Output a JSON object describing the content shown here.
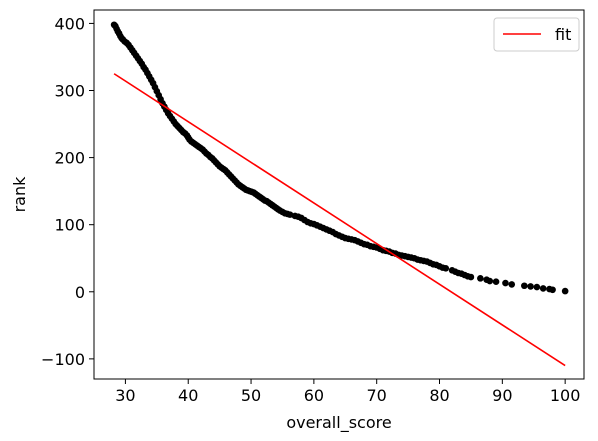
{
  "chart_data": {
    "type": "scatter",
    "xlabel": "overall_score",
    "ylabel": "rank",
    "xlim": [
      25,
      103
    ],
    "ylim": [
      -130,
      420
    ],
    "xticks": [
      30,
      40,
      50,
      60,
      70,
      80,
      90,
      100
    ],
    "yticks": [
      -100,
      0,
      100,
      200,
      300,
      400
    ],
    "xtick_labels": [
      "30",
      "40",
      "50",
      "60",
      "70",
      "80",
      "90",
      "100"
    ],
    "ytick_labels": [
      "−100",
      "0",
      "100",
      "200",
      "300",
      "400"
    ],
    "grid": false,
    "legend": {
      "position": "top-right",
      "entries": [
        {
          "label": "fit",
          "color": "#ff0000"
        }
      ]
    },
    "series": [
      {
        "kind": "points",
        "color": "#000000",
        "points": [
          [
            28.2,
            398
          ],
          [
            28.4,
            396
          ],
          [
            28.6,
            392
          ],
          [
            28.8,
            388
          ],
          [
            29.0,
            385
          ],
          [
            29.2,
            381
          ],
          [
            29.4,
            378
          ],
          [
            29.6,
            376
          ],
          [
            29.9,
            373
          ],
          [
            30.2,
            371
          ],
          [
            30.5,
            368
          ],
          [
            30.8,
            364
          ],
          [
            31.1,
            360
          ],
          [
            31.4,
            356
          ],
          [
            31.7,
            352
          ],
          [
            32.0,
            348
          ],
          [
            32.3,
            344
          ],
          [
            32.6,
            340
          ],
          [
            32.9,
            335
          ],
          [
            33.2,
            331
          ],
          [
            33.5,
            326
          ],
          [
            33.8,
            321
          ],
          [
            34.1,
            316
          ],
          [
            34.4,
            311
          ],
          [
            34.7,
            305
          ],
          [
            35.0,
            299
          ],
          [
            35.3,
            293
          ],
          [
            35.6,
            287
          ],
          [
            35.9,
            281
          ],
          [
            36.2,
            276
          ],
          [
            36.5,
            271
          ],
          [
            36.8,
            266
          ],
          [
            37.1,
            262
          ],
          [
            37.4,
            258
          ],
          [
            37.7,
            254
          ],
          [
            38.0,
            250
          ],
          [
            38.3,
            247
          ],
          [
            38.6,
            244
          ],
          [
            38.9,
            241
          ],
          [
            39.2,
            238
          ],
          [
            39.5,
            236
          ],
          [
            39.8,
            233
          ],
          [
            40.0,
            230
          ],
          [
            40.2,
            227
          ],
          [
            40.5,
            224
          ],
          [
            40.8,
            222
          ],
          [
            41.1,
            220
          ],
          [
            41.4,
            218
          ],
          [
            41.7,
            216
          ],
          [
            42.0,
            214
          ],
          [
            42.3,
            212
          ],
          [
            42.6,
            209
          ],
          [
            42.9,
            206
          ],
          [
            43.2,
            204
          ],
          [
            43.5,
            201
          ],
          [
            43.8,
            199
          ],
          [
            44.1,
            196
          ],
          [
            44.4,
            193
          ],
          [
            44.7,
            190
          ],
          [
            45.0,
            187
          ],
          [
            45.3,
            185
          ],
          [
            45.6,
            183
          ],
          [
            45.9,
            181
          ],
          [
            46.2,
            178
          ],
          [
            46.5,
            175
          ],
          [
            46.8,
            172
          ],
          [
            47.1,
            169
          ],
          [
            47.4,
            166
          ],
          [
            47.7,
            163
          ],
          [
            48.0,
            160
          ],
          [
            48.3,
            158
          ],
          [
            48.6,
            156
          ],
          [
            48.9,
            154
          ],
          [
            49.2,
            152
          ],
          [
            49.5,
            151
          ],
          [
            49.8,
            150
          ],
          [
            50.1,
            149
          ],
          [
            50.4,
            148
          ],
          [
            50.7,
            146
          ],
          [
            51.0,
            144
          ],
          [
            51.3,
            142
          ],
          [
            51.6,
            140
          ],
          [
            51.9,
            138
          ],
          [
            52.2,
            136
          ],
          [
            52.5,
            135
          ],
          [
            52.8,
            133
          ],
          [
            53.1,
            131
          ],
          [
            53.4,
            129
          ],
          [
            53.7,
            127
          ],
          [
            54.0,
            125
          ],
          [
            54.3,
            123
          ],
          [
            54.6,
            121
          ],
          [
            55.0,
            119
          ],
          [
            55.4,
            117
          ],
          [
            55.8,
            116
          ],
          [
            56.2,
            115
          ],
          [
            57.0,
            113
          ],
          [
            57.5,
            112
          ],
          [
            58.0,
            110
          ],
          [
            58.5,
            107
          ],
          [
            59.0,
            104
          ],
          [
            59.5,
            102
          ],
          [
            60.0,
            101
          ],
          [
            60.5,
            99
          ],
          [
            61.0,
            97
          ],
          [
            61.5,
            95
          ],
          [
            62.0,
            93
          ],
          [
            62.5,
            91
          ],
          [
            63.0,
            89
          ],
          [
            63.5,
            86
          ],
          [
            64.0,
            84
          ],
          [
            64.5,
            82
          ],
          [
            65.0,
            80
          ],
          [
            65.5,
            79
          ],
          [
            66.0,
            78
          ],
          [
            66.5,
            77
          ],
          [
            67.0,
            75
          ],
          [
            67.5,
            73
          ],
          [
            68.0,
            71
          ],
          [
            68.5,
            70
          ],
          [
            69.0,
            68
          ],
          [
            69.5,
            67
          ],
          [
            70.0,
            66
          ],
          [
            70.5,
            64
          ],
          [
            71.0,
            62
          ],
          [
            71.5,
            61
          ],
          [
            72.0,
            60
          ],
          [
            72.5,
            58
          ],
          [
            73.0,
            57
          ],
          [
            73.5,
            55
          ],
          [
            74.0,
            54
          ],
          [
            74.5,
            53
          ],
          [
            75.0,
            52
          ],
          [
            75.5,
            51
          ],
          [
            76.0,
            50
          ],
          [
            76.5,
            48
          ],
          [
            77.0,
            47
          ],
          [
            77.5,
            46
          ],
          [
            78.0,
            45
          ],
          [
            78.5,
            43
          ],
          [
            79.0,
            41
          ],
          [
            79.5,
            40
          ],
          [
            80.0,
            38
          ],
          [
            80.5,
            36
          ],
          [
            81.0,
            35
          ],
          [
            82.0,
            32
          ],
          [
            82.5,
            30
          ],
          [
            83.0,
            28
          ],
          [
            83.5,
            27
          ],
          [
            84.0,
            25
          ],
          [
            84.5,
            23
          ],
          [
            85.0,
            22
          ],
          [
            86.5,
            20
          ],
          [
            87.5,
            18
          ],
          [
            88.0,
            16
          ],
          [
            89.0,
            15
          ],
          [
            90.5,
            13
          ],
          [
            91.5,
            11
          ],
          [
            93.5,
            9
          ],
          [
            94.5,
            8
          ],
          [
            95.5,
            7
          ],
          [
            96.5,
            5
          ],
          [
            97.5,
            4
          ],
          [
            98.0,
            3
          ],
          [
            100.0,
            1
          ]
        ]
      },
      {
        "name": "fit",
        "kind": "line",
        "color": "#ff0000",
        "x": [
          28.2,
          100.0
        ],
        "y": [
          325,
          -110
        ]
      }
    ]
  }
}
